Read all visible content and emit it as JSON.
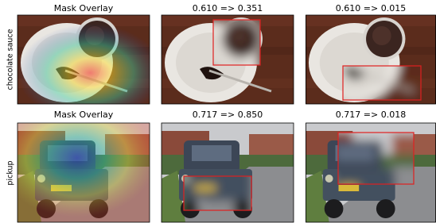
{
  "rows": [
    {
      "label": "chocolate sauce",
      "titles": [
        "Mask Overlay",
        "0.610 => 0.351",
        "0.610 => 0.015"
      ]
    },
    {
      "label": "pickup",
      "titles": [
        "Mask Overlay",
        "0.717 => 0.850",
        "0.717 => 0.018"
      ]
    }
  ]
}
